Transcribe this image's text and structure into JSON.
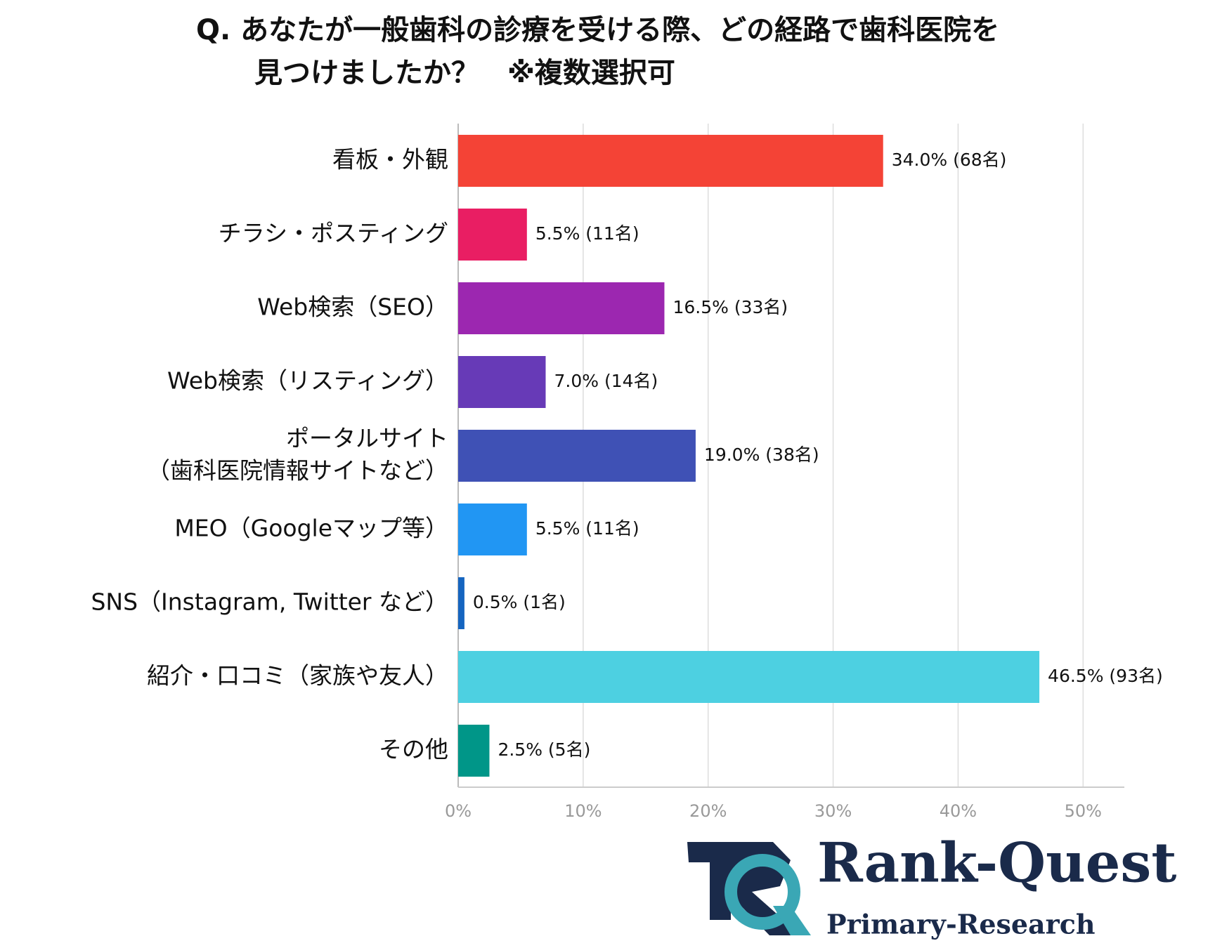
{
  "chart_data": {
    "type": "barh",
    "title": [
      "Q.  あなたが一般歯科の診療を受ける際、どの経路で歯科医院を",
      "見つけましたか？　※複数選択可"
    ],
    "categories": [
      "看板・外観",
      "チラシ・ポスティング",
      "Web検索（SEO）",
      "Web検索（リスティング）",
      [
        "ポータルサイト",
        "（歯科医院情報サイトなど）"
      ],
      "MEO（Googleマップ等）",
      "SNS（Instagram, Twitter など）",
      "紹介・口コミ（家族や友人）",
      "その他"
    ],
    "values": [
      34.0,
      5.5,
      16.5,
      7.0,
      19.0,
      5.5,
      0.5,
      46.5,
      2.5
    ],
    "value_labels": [
      "34.0% (68名)",
      "5.5% (11名)",
      "16.5% (33名)",
      "7.0% (14名)",
      "19.0% (38名)",
      "5.5% (11名)",
      "0.5% (1名)",
      "46.5% (93名)",
      "2.5% (5名)"
    ],
    "colors": [
      "#f44336",
      "#e91e63",
      "#9c27b0",
      "#673ab7",
      "#3f51b5",
      "#2196f3",
      "#1565c0",
      "#4dd0e1",
      "#009688"
    ],
    "xlim": [
      0,
      53.3
    ],
    "xticks": [
      {
        "value": 0,
        "label": "0%"
      },
      {
        "value": 10,
        "label": "10%"
      },
      {
        "value": 20,
        "label": "20%"
      },
      {
        "value": 30,
        "label": "30%"
      },
      {
        "value": 40,
        "label": "40%"
      },
      {
        "value": 50,
        "label": "50%"
      }
    ],
    "grid": true
  },
  "logo": {
    "name": "Rank-Quest",
    "tagline": "Primary-Research"
  }
}
